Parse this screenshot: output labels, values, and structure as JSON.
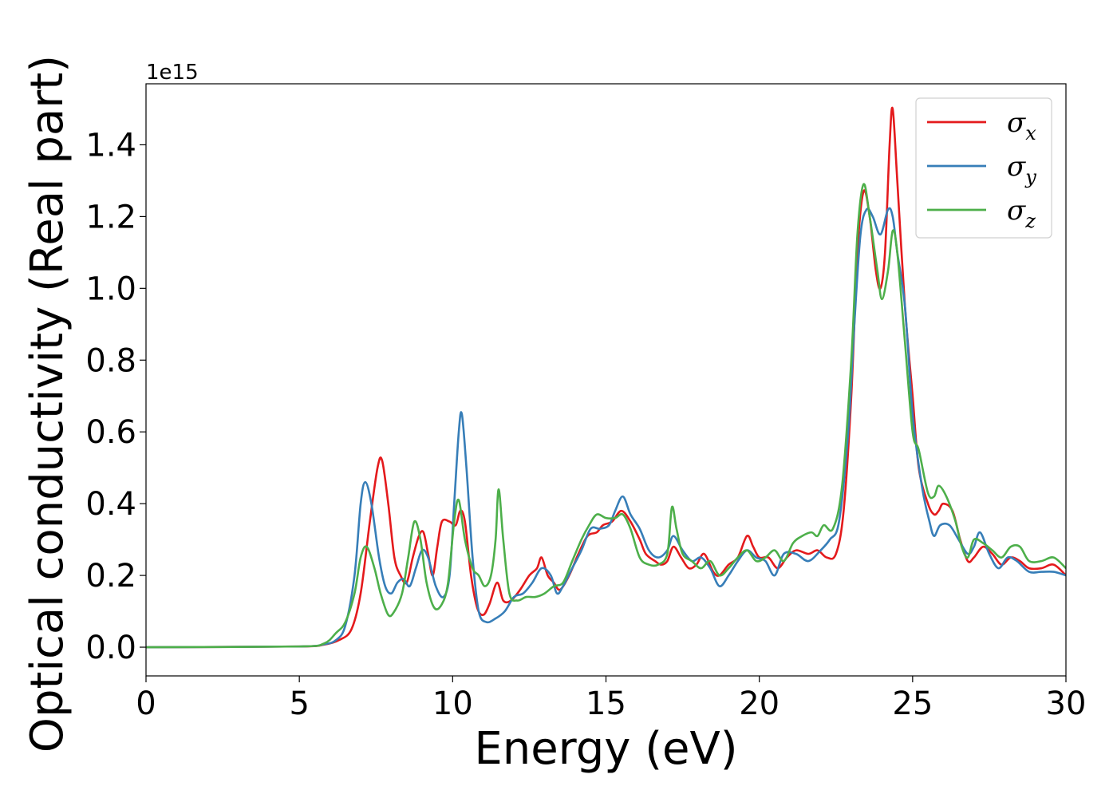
{
  "chart_data": {
    "type": "line",
    "title": "",
    "xlabel": "Energy (eV)",
    "ylabel": "Optical conductivity (Real part)",
    "y_offset_label": "1e15",
    "xlim": [
      0,
      30
    ],
    "ylim": [
      -0.08,
      1.57
    ],
    "x_ticks": [
      0,
      5,
      10,
      15,
      20,
      25,
      30
    ],
    "x_tick_labels": [
      "0",
      "5",
      "10",
      "15",
      "20",
      "25",
      "30"
    ],
    "y_ticks": [
      0.0,
      0.2,
      0.4,
      0.6,
      0.8,
      1.0,
      1.2,
      1.4
    ],
    "y_tick_labels": [
      "0.0",
      "0.2",
      "0.4",
      "0.6",
      "0.8",
      "1.0",
      "1.2",
      "1.4"
    ],
    "grid": false,
    "legend_position": "top-right",
    "series": [
      {
        "name": "σ_x",
        "legend_base": "σ",
        "legend_sub": "x",
        "color": "#e41a1c",
        "points": [
          [
            0,
            0
          ],
          [
            5,
            0.002
          ],
          [
            5.8,
            0.007
          ],
          [
            6.3,
            0.02
          ],
          [
            6.7,
            0.05
          ],
          [
            7.0,
            0.15
          ],
          [
            7.3,
            0.35
          ],
          [
            7.55,
            0.5
          ],
          [
            7.7,
            0.52
          ],
          [
            7.9,
            0.4
          ],
          [
            8.1,
            0.25
          ],
          [
            8.3,
            0.2
          ],
          [
            8.5,
            0.18
          ],
          [
            8.7,
            0.25
          ],
          [
            8.9,
            0.31
          ],
          [
            9.05,
            0.32
          ],
          [
            9.2,
            0.26
          ],
          [
            9.35,
            0.2
          ],
          [
            9.5,
            0.28
          ],
          [
            9.65,
            0.35
          ],
          [
            9.9,
            0.35
          ],
          [
            10.1,
            0.34
          ],
          [
            10.25,
            0.38
          ],
          [
            10.4,
            0.35
          ],
          [
            10.6,
            0.2
          ],
          [
            10.8,
            0.11
          ],
          [
            11.0,
            0.09
          ],
          [
            11.2,
            0.12
          ],
          [
            11.45,
            0.18
          ],
          [
            11.65,
            0.13
          ],
          [
            11.9,
            0.13
          ],
          [
            12.2,
            0.16
          ],
          [
            12.5,
            0.2
          ],
          [
            12.75,
            0.22
          ],
          [
            12.9,
            0.25
          ],
          [
            13.1,
            0.2
          ],
          [
            13.3,
            0.18
          ],
          [
            13.5,
            0.16
          ],
          [
            13.8,
            0.2
          ],
          [
            14.1,
            0.26
          ],
          [
            14.4,
            0.31
          ],
          [
            14.7,
            0.32
          ],
          [
            14.9,
            0.34
          ],
          [
            15.2,
            0.35
          ],
          [
            15.5,
            0.38
          ],
          [
            15.8,
            0.35
          ],
          [
            16.1,
            0.3
          ],
          [
            16.3,
            0.26
          ],
          [
            16.6,
            0.24
          ],
          [
            16.8,
            0.23
          ],
          [
            17.0,
            0.24
          ],
          [
            17.2,
            0.28
          ],
          [
            17.45,
            0.25
          ],
          [
            17.7,
            0.22
          ],
          [
            17.95,
            0.23
          ],
          [
            18.2,
            0.26
          ],
          [
            18.5,
            0.21
          ],
          [
            18.7,
            0.2
          ],
          [
            19.0,
            0.23
          ],
          [
            19.3,
            0.25
          ],
          [
            19.6,
            0.31
          ],
          [
            19.8,
            0.28
          ],
          [
            20.0,
            0.25
          ],
          [
            20.3,
            0.25
          ],
          [
            20.6,
            0.22
          ],
          [
            20.9,
            0.25
          ],
          [
            21.2,
            0.27
          ],
          [
            21.6,
            0.26
          ],
          [
            21.9,
            0.27
          ],
          [
            22.2,
            0.25
          ],
          [
            22.5,
            0.26
          ],
          [
            22.75,
            0.38
          ],
          [
            23.0,
            0.7
          ],
          [
            23.2,
            1.1
          ],
          [
            23.4,
            1.27
          ],
          [
            23.6,
            1.2
          ],
          [
            23.8,
            1.05
          ],
          [
            23.95,
            1.0
          ],
          [
            24.1,
            1.1
          ],
          [
            24.25,
            1.4
          ],
          [
            24.35,
            1.5
          ],
          [
            24.5,
            1.3
          ],
          [
            24.75,
            0.95
          ],
          [
            25.0,
            0.7
          ],
          [
            25.2,
            0.5
          ],
          [
            25.5,
            0.4
          ],
          [
            25.7,
            0.37
          ],
          [
            25.85,
            0.38
          ],
          [
            26.0,
            0.4
          ],
          [
            26.3,
            0.38
          ],
          [
            26.55,
            0.3
          ],
          [
            26.8,
            0.24
          ],
          [
            27.0,
            0.25
          ],
          [
            27.3,
            0.28
          ],
          [
            27.6,
            0.26
          ],
          [
            27.9,
            0.23
          ],
          [
            28.2,
            0.25
          ],
          [
            28.5,
            0.24
          ],
          [
            28.8,
            0.22
          ],
          [
            29.2,
            0.22
          ],
          [
            29.6,
            0.23
          ],
          [
            30,
            0.2
          ]
        ]
      },
      {
        "name": "σ_y",
        "legend_base": "σ",
        "legend_sub": "y",
        "color": "#377eb8",
        "points": [
          [
            0,
            0
          ],
          [
            5,
            0.002
          ],
          [
            5.8,
            0.008
          ],
          [
            6.2,
            0.02
          ],
          [
            6.5,
            0.06
          ],
          [
            6.8,
            0.2
          ],
          [
            7.0,
            0.4
          ],
          [
            7.15,
            0.46
          ],
          [
            7.35,
            0.4
          ],
          [
            7.6,
            0.25
          ],
          [
            7.8,
            0.17
          ],
          [
            8.0,
            0.15
          ],
          [
            8.2,
            0.18
          ],
          [
            8.4,
            0.19
          ],
          [
            8.6,
            0.17
          ],
          [
            8.8,
            0.22
          ],
          [
            9.0,
            0.27
          ],
          [
            9.2,
            0.25
          ],
          [
            9.45,
            0.17
          ],
          [
            9.7,
            0.14
          ],
          [
            9.9,
            0.2
          ],
          [
            10.05,
            0.4
          ],
          [
            10.2,
            0.6
          ],
          [
            10.3,
            0.65
          ],
          [
            10.45,
            0.5
          ],
          [
            10.65,
            0.25
          ],
          [
            10.85,
            0.1
          ],
          [
            11.1,
            0.07
          ],
          [
            11.4,
            0.08
          ],
          [
            11.7,
            0.1
          ],
          [
            12.0,
            0.14
          ],
          [
            12.3,
            0.15
          ],
          [
            12.6,
            0.18
          ],
          [
            12.9,
            0.22
          ],
          [
            13.2,
            0.2
          ],
          [
            13.4,
            0.15
          ],
          [
            13.6,
            0.17
          ],
          [
            13.9,
            0.22
          ],
          [
            14.2,
            0.27
          ],
          [
            14.5,
            0.33
          ],
          [
            14.8,
            0.33
          ],
          [
            15.1,
            0.34
          ],
          [
            15.3,
            0.38
          ],
          [
            15.55,
            0.42
          ],
          [
            15.8,
            0.37
          ],
          [
            16.1,
            0.33
          ],
          [
            16.4,
            0.27
          ],
          [
            16.7,
            0.25
          ],
          [
            17.0,
            0.27
          ],
          [
            17.2,
            0.31
          ],
          [
            17.5,
            0.27
          ],
          [
            17.8,
            0.24
          ],
          [
            18.1,
            0.25
          ],
          [
            18.4,
            0.22
          ],
          [
            18.7,
            0.17
          ],
          [
            19.0,
            0.2
          ],
          [
            19.3,
            0.24
          ],
          [
            19.6,
            0.27
          ],
          [
            19.9,
            0.25
          ],
          [
            20.2,
            0.24
          ],
          [
            20.5,
            0.2
          ],
          [
            20.8,
            0.26
          ],
          [
            21.2,
            0.26
          ],
          [
            21.6,
            0.24
          ],
          [
            22.0,
            0.27
          ],
          [
            22.3,
            0.3
          ],
          [
            22.6,
            0.35
          ],
          [
            22.9,
            0.6
          ],
          [
            23.1,
            0.9
          ],
          [
            23.3,
            1.15
          ],
          [
            23.5,
            1.22
          ],
          [
            23.7,
            1.2
          ],
          [
            23.95,
            1.15
          ],
          [
            24.2,
            1.22
          ],
          [
            24.35,
            1.2
          ],
          [
            24.5,
            1.1
          ],
          [
            24.75,
            0.95
          ],
          [
            25.0,
            0.65
          ],
          [
            25.3,
            0.45
          ],
          [
            25.55,
            0.35
          ],
          [
            25.7,
            0.31
          ],
          [
            25.9,
            0.34
          ],
          [
            26.2,
            0.34
          ],
          [
            26.5,
            0.3
          ],
          [
            26.8,
            0.26
          ],
          [
            27.0,
            0.28
          ],
          [
            27.2,
            0.32
          ],
          [
            27.5,
            0.26
          ],
          [
            27.8,
            0.22
          ],
          [
            28.1,
            0.25
          ],
          [
            28.4,
            0.24
          ],
          [
            28.8,
            0.21
          ],
          [
            29.2,
            0.21
          ],
          [
            29.6,
            0.21
          ],
          [
            30,
            0.2
          ]
        ]
      },
      {
        "name": "σ_z",
        "legend_base": "σ",
        "legend_sub": "z",
        "color": "#4daf4a",
        "points": [
          [
            0,
            0
          ],
          [
            5,
            0.002
          ],
          [
            5.8,
            0.01
          ],
          [
            6.2,
            0.04
          ],
          [
            6.5,
            0.07
          ],
          [
            6.8,
            0.15
          ],
          [
            7.0,
            0.25
          ],
          [
            7.2,
            0.28
          ],
          [
            7.45,
            0.22
          ],
          [
            7.65,
            0.15
          ],
          [
            7.9,
            0.09
          ],
          [
            8.1,
            0.1
          ],
          [
            8.35,
            0.15
          ],
          [
            8.55,
            0.25
          ],
          [
            8.75,
            0.35
          ],
          [
            8.95,
            0.3
          ],
          [
            9.15,
            0.18
          ],
          [
            9.4,
            0.11
          ],
          [
            9.65,
            0.12
          ],
          [
            9.85,
            0.18
          ],
          [
            10.05,
            0.35
          ],
          [
            10.2,
            0.41
          ],
          [
            10.4,
            0.3
          ],
          [
            10.65,
            0.22
          ],
          [
            10.85,
            0.2
          ],
          [
            11.05,
            0.17
          ],
          [
            11.25,
            0.2
          ],
          [
            11.4,
            0.3
          ],
          [
            11.5,
            0.44
          ],
          [
            11.65,
            0.3
          ],
          [
            11.85,
            0.15
          ],
          [
            12.1,
            0.13
          ],
          [
            12.4,
            0.14
          ],
          [
            12.7,
            0.14
          ],
          [
            13.0,
            0.15
          ],
          [
            13.3,
            0.17
          ],
          [
            13.6,
            0.18
          ],
          [
            13.9,
            0.24
          ],
          [
            14.2,
            0.3
          ],
          [
            14.45,
            0.34
          ],
          [
            14.7,
            0.37
          ],
          [
            15.0,
            0.36
          ],
          [
            15.3,
            0.36
          ],
          [
            15.55,
            0.37
          ],
          [
            15.8,
            0.33
          ],
          [
            16.1,
            0.25
          ],
          [
            16.4,
            0.23
          ],
          [
            16.7,
            0.23
          ],
          [
            17.0,
            0.26
          ],
          [
            17.15,
            0.39
          ],
          [
            17.3,
            0.33
          ],
          [
            17.5,
            0.26
          ],
          [
            17.8,
            0.24
          ],
          [
            18.1,
            0.22
          ],
          [
            18.4,
            0.24
          ],
          [
            18.7,
            0.2
          ],
          [
            19.0,
            0.22
          ],
          [
            19.3,
            0.25
          ],
          [
            19.6,
            0.27
          ],
          [
            19.9,
            0.24
          ],
          [
            20.2,
            0.25
          ],
          [
            20.5,
            0.27
          ],
          [
            20.8,
            0.24
          ],
          [
            21.1,
            0.29
          ],
          [
            21.4,
            0.31
          ],
          [
            21.7,
            0.32
          ],
          [
            21.9,
            0.31
          ],
          [
            22.1,
            0.34
          ],
          [
            22.4,
            0.33
          ],
          [
            22.7,
            0.45
          ],
          [
            23.0,
            0.8
          ],
          [
            23.2,
            1.15
          ],
          [
            23.4,
            1.29
          ],
          [
            23.6,
            1.2
          ],
          [
            23.85,
            1.05
          ],
          [
            24.0,
            0.97
          ],
          [
            24.2,
            1.05
          ],
          [
            24.35,
            1.16
          ],
          [
            24.5,
            1.1
          ],
          [
            24.75,
            0.85
          ],
          [
            25.0,
            0.6
          ],
          [
            25.2,
            0.55
          ],
          [
            25.5,
            0.43
          ],
          [
            25.7,
            0.42
          ],
          [
            25.85,
            0.45
          ],
          [
            26.1,
            0.42
          ],
          [
            26.4,
            0.35
          ],
          [
            26.6,
            0.28
          ],
          [
            26.8,
            0.25
          ],
          [
            27.0,
            0.3
          ],
          [
            27.3,
            0.29
          ],
          [
            27.6,
            0.27
          ],
          [
            27.9,
            0.25
          ],
          [
            28.2,
            0.28
          ],
          [
            28.5,
            0.28
          ],
          [
            28.8,
            0.24
          ],
          [
            29.2,
            0.24
          ],
          [
            29.6,
            0.25
          ],
          [
            30,
            0.22
          ]
        ]
      }
    ]
  }
}
